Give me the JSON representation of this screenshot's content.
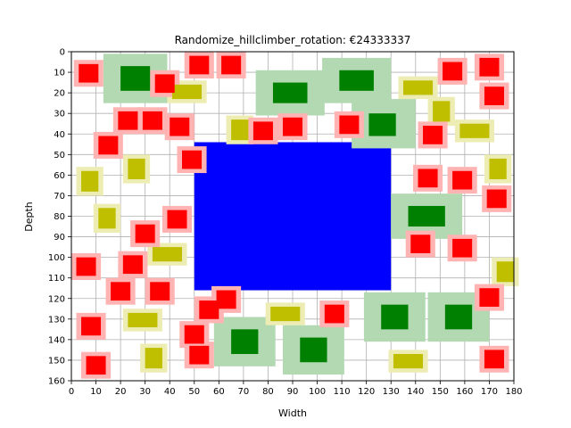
{
  "chart_data": {
    "type": "rectangles",
    "title": "Randomize_hillclimber_rotation: €24333337",
    "xlabel": "Width",
    "ylabel": "Depth",
    "xlim": [
      0,
      180
    ],
    "ylim": [
      160,
      0
    ],
    "y_inverted": true,
    "grid": true,
    "xticks": [
      "0",
      "10",
      "20",
      "30",
      "40",
      "50",
      "60",
      "70",
      "80",
      "90",
      "100",
      "110",
      "120",
      "130",
      "140",
      "150",
      "160",
      "170",
      "180"
    ],
    "yticks": [
      "0",
      "10",
      "20",
      "30",
      "40",
      "50",
      "60",
      "70",
      "80",
      "90",
      "100",
      "110",
      "120",
      "130",
      "140",
      "150",
      "160"
    ],
    "colors": {
      "red": "#ff0000",
      "red_halo": "#ffb3b3",
      "green": "#008000",
      "green_halo": "#b3d9b3",
      "yellow": "#bfbf00",
      "yellow_halo": "#ececb3",
      "blue": "#0000ff",
      "grid": "#b0b0b0"
    },
    "blue": [
      {
        "x0": 50,
        "x1": 130,
        "y0": 44,
        "y1": 116
      }
    ],
    "green": [
      {
        "x0": 20,
        "x1": 32,
        "y0": 7,
        "y1": 19,
        "hx0": 13,
        "hx1": 39,
        "hy0": 1,
        "hy1": 25
      },
      {
        "x0": 82,
        "x1": 96,
        "y0": 15,
        "y1": 25,
        "hx0": 75,
        "hx1": 103,
        "hy0": 9,
        "hy1": 31
      },
      {
        "x0": 109,
        "x1": 123,
        "y0": 9,
        "y1": 19,
        "hx0": 102,
        "hx1": 130,
        "hy0": 3,
        "hy1": 25
      },
      {
        "x0": 121,
        "x1": 132,
        "y0": 30,
        "y1": 41,
        "hx0": 114,
        "hx1": 140,
        "hy0": 23,
        "hy1": 47
      },
      {
        "x0": 137,
        "x1": 152,
        "y0": 75,
        "y1": 85,
        "hx0": 130,
        "hx1": 159,
        "hy0": 69,
        "hy1": 91
      },
      {
        "x0": 126,
        "x1": 137,
        "y0": 123,
        "y1": 135,
        "hx0": 119,
        "hx1": 144,
        "hy0": 117,
        "hy1": 141
      },
      {
        "x0": 152,
        "x1": 163,
        "y0": 123,
        "y1": 135,
        "hx0": 145,
        "hx1": 170,
        "hy0": 117,
        "hy1": 141
      },
      {
        "x0": 65,
        "x1": 76,
        "y0": 135,
        "y1": 147,
        "hx0": 58,
        "hx1": 83,
        "hy0": 129,
        "hy1": 153
      },
      {
        "x0": 93,
        "x1": 104,
        "y0": 139,
        "y1": 151,
        "hx0": 86,
        "hx1": 111,
        "hy0": 133,
        "hy1": 157
      }
    ],
    "yellow": [
      {
        "x0": 23,
        "x1": 30,
        "y0": 52,
        "y1": 62
      },
      {
        "x0": 4,
        "x1": 11,
        "y0": 58,
        "y1": 68
      },
      {
        "x0": 11,
        "x1": 18,
        "y0": 76,
        "y1": 86
      },
      {
        "x0": 41,
        "x1": 53,
        "y0": 16,
        "y1": 23
      },
      {
        "x0": 65,
        "x1": 72,
        "y0": 33,
        "y1": 43
      },
      {
        "x0": 135,
        "x1": 147,
        "y0": 14,
        "y1": 21
      },
      {
        "x0": 147,
        "x1": 154,
        "y0": 24,
        "y1": 34
      },
      {
        "x0": 158,
        "x1": 170,
        "y0": 35,
        "y1": 42
      },
      {
        "x0": 170,
        "x1": 177,
        "y0": 52,
        "y1": 62
      },
      {
        "x0": 173,
        "x1": 180,
        "y0": 102,
        "y1": 112
      },
      {
        "x0": 33,
        "x1": 45,
        "y0": 95,
        "y1": 102
      },
      {
        "x0": 23,
        "x1": 35,
        "y0": 127,
        "y1": 134
      },
      {
        "x0": 81,
        "x1": 93,
        "y0": 124,
        "y1": 131
      },
      {
        "x0": 30,
        "x1": 37,
        "y0": 144,
        "y1": 154
      },
      {
        "x0": 131,
        "x1": 143,
        "y0": 147,
        "y1": 154
      }
    ],
    "red": [
      {
        "x0": 3,
        "x1": 11,
        "y0": 6,
        "y1": 15
      },
      {
        "x0": 48,
        "x1": 56,
        "y0": 2,
        "y1": 11
      },
      {
        "x0": 61,
        "x1": 69,
        "y0": 2,
        "y1": 11
      },
      {
        "x0": 34,
        "x1": 42,
        "y0": 11,
        "y1": 20
      },
      {
        "x0": 19,
        "x1": 27,
        "y0": 29,
        "y1": 38
      },
      {
        "x0": 29,
        "x1": 37,
        "y0": 29,
        "y1": 38
      },
      {
        "x0": 40,
        "x1": 48,
        "y0": 32,
        "y1": 41
      },
      {
        "x0": 74,
        "x1": 82,
        "y0": 34,
        "y1": 43
      },
      {
        "x0": 86,
        "x1": 94,
        "y0": 32,
        "y1": 41
      },
      {
        "x0": 109,
        "x1": 117,
        "y0": 31,
        "y1": 40
      },
      {
        "x0": 11,
        "x1": 19,
        "y0": 41,
        "y1": 50
      },
      {
        "x0": 45,
        "x1": 53,
        "y0": 48,
        "y1": 57
      },
      {
        "x0": 151,
        "x1": 159,
        "y0": 5,
        "y1": 14
      },
      {
        "x0": 166,
        "x1": 174,
        "y0": 3,
        "y1": 12
      },
      {
        "x0": 168,
        "x1": 176,
        "y0": 17,
        "y1": 26
      },
      {
        "x0": 143,
        "x1": 151,
        "y0": 36,
        "y1": 45
      },
      {
        "x0": 141,
        "x1": 149,
        "y0": 57,
        "y1": 66
      },
      {
        "x0": 155,
        "x1": 163,
        "y0": 58,
        "y1": 67
      },
      {
        "x0": 169,
        "x1": 177,
        "y0": 67,
        "y1": 76
      },
      {
        "x0": 138,
        "x1": 146,
        "y0": 89,
        "y1": 98
      },
      {
        "x0": 155,
        "x1": 163,
        "y0": 91,
        "y1": 100
      },
      {
        "x0": 166,
        "x1": 174,
        "y0": 115,
        "y1": 124
      },
      {
        "x0": 168,
        "x1": 176,
        "y0": 145,
        "y1": 154
      },
      {
        "x0": 39,
        "x1": 47,
        "y0": 77,
        "y1": 86
      },
      {
        "x0": 26,
        "x1": 34,
        "y0": 84,
        "y1": 93
      },
      {
        "x0": 2,
        "x1": 10,
        "y0": 100,
        "y1": 109
      },
      {
        "x0": 21,
        "x1": 29,
        "y0": 99,
        "y1": 108
      },
      {
        "x0": 16,
        "x1": 24,
        "y0": 112,
        "y1": 121
      },
      {
        "x0": 32,
        "x1": 40,
        "y0": 112,
        "y1": 121
      },
      {
        "x0": 59,
        "x1": 67,
        "y0": 116,
        "y1": 125
      },
      {
        "x0": 52,
        "x1": 60,
        "y0": 121,
        "y1": 130
      },
      {
        "x0": 103,
        "x1": 111,
        "y0": 123,
        "y1": 132
      },
      {
        "x0": 4,
        "x1": 12,
        "y0": 129,
        "y1": 138
      },
      {
        "x0": 46,
        "x1": 54,
        "y0": 133,
        "y1": 142
      },
      {
        "x0": 48,
        "x1": 56,
        "y0": 143,
        "y1": 152
      },
      {
        "x0": 6,
        "x1": 14,
        "y0": 148,
        "y1": 157
      }
    ]
  }
}
